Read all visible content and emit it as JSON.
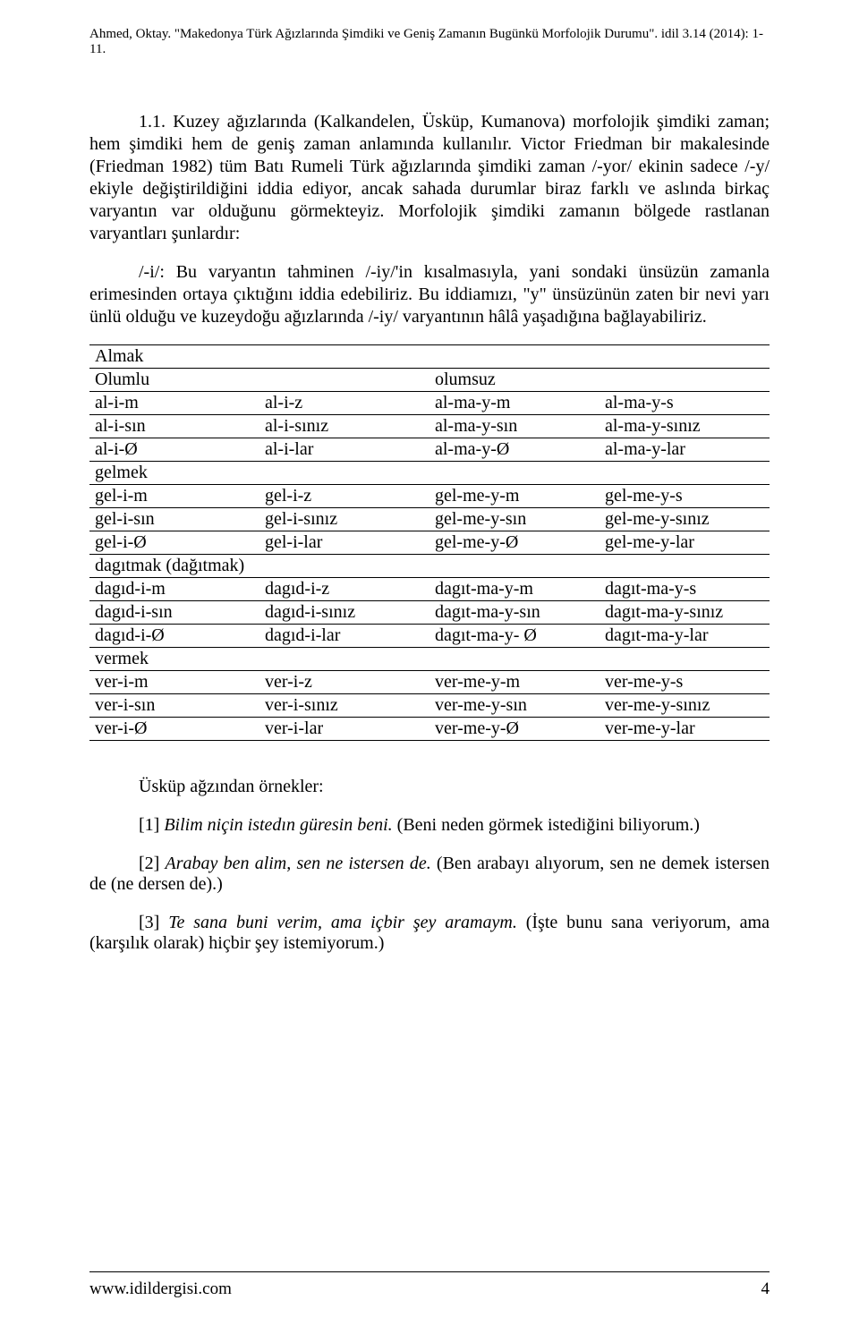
{
  "header": {
    "citation": "Ahmed, Oktay. \"Makedonya Türk Ağızlarında Şimdiki ve Geniş Zamanın Bugünkü Morfolojik Durumu\". idil 3.14 (2014): 1-11."
  },
  "body": {
    "p1": "1.1. Kuzey ağızlarında (Kalkandelen, Üsküp, Kumanova) morfolojik şimdiki zaman; hem şimdiki hem de geniş zaman anlamında kullanılır. Victor Friedman bir makalesinde (Friedman 1982) tüm Batı Rumeli Türk ağızlarında şimdiki zaman /-yor/ ekinin sadece /-y/ ekiyle değiştirildiğini iddia ediyor, ancak sahada durumlar biraz farklı ve aslında birkaç varyantın var olduğunu görmekteyiz. Morfolojik şimdiki zamanın bölgede rastlanan varyantları şunlardır:",
    "p2": "/-i/: Bu varyantın tahminen /-iy/'in kısalmasıyla, yani sondaki ünsüzün zamanla erimesinden ortaya çıktığını iddia edebiliriz. Bu iddiamızı, \"y\" ünsüzünün zaten bir nevi yarı ünlü olduğu ve kuzeydoğu ağızlarında /-iy/ varyantının hâlâ yaşadığına bağlayabiliriz."
  },
  "table": {
    "almak_hdr": "Almak",
    "olumlu": "Olumlu",
    "olumsuz": "olumsuz",
    "r": [
      [
        "al-i-m",
        "al-i-z",
        "al-ma-y-m",
        "al-ma-y-s"
      ],
      [
        "al-i-sın",
        "al-i-sınız",
        "al-ma-y-sın",
        "al-ma-y-sınız"
      ],
      [
        "al-i-Ø",
        "al-i-lar",
        "al-ma-y-Ø",
        "al-ma-y-lar"
      ]
    ],
    "gelmek_hdr": "gelmek",
    "g": [
      [
        "gel-i-m",
        "gel-i-z",
        "gel-me-y-m",
        "gel-me-y-s"
      ],
      [
        "gel-i-sın",
        "gel-i-sınız",
        "gel-me-y-sın",
        "gel-me-y-sınız"
      ],
      [
        "gel-i-Ø",
        "gel-i-lar",
        "gel-me-y-Ø",
        "gel-me-y-lar"
      ]
    ],
    "dagitmak_hdr": "dagıtmak (dağıtmak)",
    "d": [
      [
        "dagıd-i-m",
        "dagıd-i-z",
        "dagıt-ma-y-m",
        "dagıt-ma-y-s"
      ],
      [
        "dagıd-i-sın",
        "dagıd-i-sınız",
        "dagıt-ma-y-sın",
        "dagıt-ma-y-sınız"
      ],
      [
        "dagıd-i-Ø",
        "dagıd-i-lar",
        "dagıt-ma-y- Ø",
        "dagıt-ma-y-lar"
      ]
    ],
    "vermek_hdr": "vermek",
    "v": [
      [
        "ver-i-m",
        "ver-i-z",
        "ver-me-y-m",
        "ver-me-y-s"
      ],
      [
        "ver-i-sın",
        "ver-i-sınız",
        "ver-me-y-sın",
        "ver-me-y-sınız"
      ],
      [
        "ver-i-Ø",
        "ver-i-lar",
        "ver-me-y-Ø",
        "ver-me-y-lar"
      ]
    ]
  },
  "examples": {
    "head": "Üsküp ağzından örnekler:",
    "e1_num": "[1] ",
    "e1_it": "Bilim niçin istedın güresin beni.",
    "e1_rest": " (Beni neden görmek istediğini biliyorum.)",
    "e2_num": "[2] ",
    "e2_it": "Arabay ben alim, sen ne istersen de.",
    "e2_rest": " (Ben arabayı alıyorum, sen ne demek istersen de (ne dersen de).)",
    "e3_num": "[3] ",
    "e3_it": "Te sana buni verim, ama içbir şey aramaym.",
    "e3_rest": " (İşte bunu sana veriyorum, ama (karşılık olarak) hiçbir şey istemiyorum.)"
  },
  "footer": {
    "site": "www.idildergisi.com",
    "page": "4"
  }
}
